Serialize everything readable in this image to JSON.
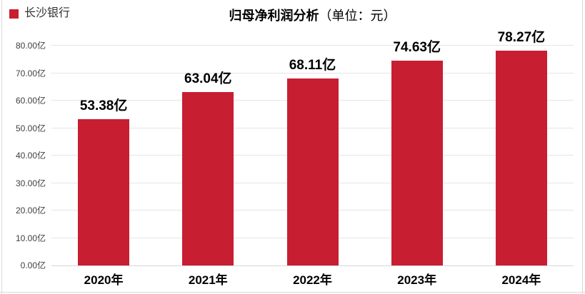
{
  "legend": {
    "label": "长沙银行",
    "marker_color": "#C81E32"
  },
  "title": {
    "main": "归母净利润分析",
    "unit": "（单位：元）"
  },
  "chart_data": {
    "type": "bar",
    "title": "归母净利润分析（单位：元）",
    "series_name": "长沙银行",
    "categories": [
      "2020年",
      "2021年",
      "2022年",
      "2023年",
      "2024年"
    ],
    "values": [
      53.38,
      63.04,
      68.11,
      74.63,
      78.27
    ],
    "value_labels": [
      "53.38亿",
      "63.04亿",
      "68.11亿",
      "74.63亿",
      "78.27亿"
    ],
    "unit": "亿",
    "ylim": [
      0,
      80
    ],
    "y_tick_step": 10,
    "y_tick_labels": [
      "0.00亿",
      "10.00亿",
      "20.00亿",
      "30.00亿",
      "40.00亿",
      "50.00亿",
      "60.00亿",
      "70.00亿",
      "80.00亿"
    ],
    "bar_color": "#C81E32",
    "grid": true,
    "legend_position": "top-left",
    "xlabel": "",
    "ylabel": ""
  },
  "colors": {
    "bar": "#C81E32",
    "gridline": "#E5E5E5",
    "axis_line": "#D7D7D7",
    "frame_border": "#D9D9D9",
    "tick_text": "#404040",
    "label_text": "#000000"
  }
}
